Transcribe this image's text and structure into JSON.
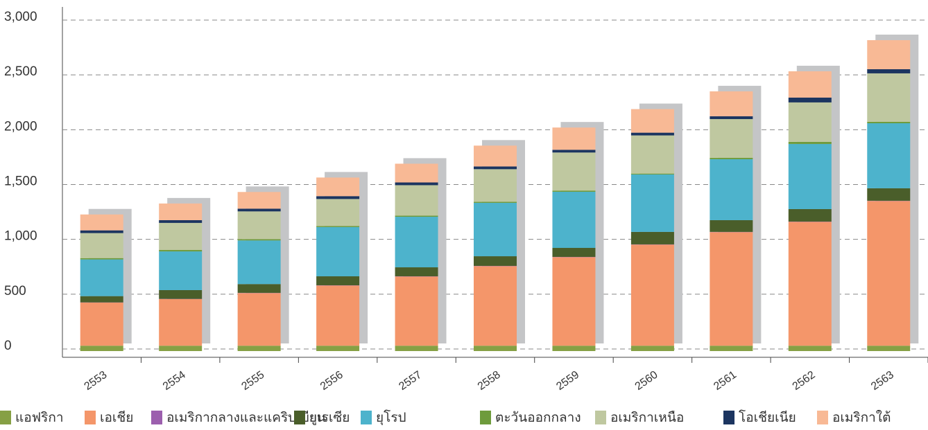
{
  "chart_data": {
    "type": "stacked_bar",
    "categories": [
      "2553",
      "2554",
      "2555",
      "2556",
      "2557",
      "2558",
      "2559",
      "2560",
      "2561",
      "2562",
      "2563"
    ],
    "series": [
      {
        "name": "แอฟริกา",
        "color": "#86a044",
        "values": [
          30,
          30,
          30,
          30,
          30,
          30,
          30,
          30,
          30,
          30,
          30
        ]
      },
      {
        "name": "เอเชีย",
        "color": "#f4966a",
        "values": [
          393,
          425,
          480,
          549,
          631,
          726,
          808,
          922,
          1036,
          1130,
          1320
        ]
      },
      {
        "name": "อเมริกากลางและแคริบเบียน",
        "color": "#9c5fae",
        "values": [
          2,
          2,
          2,
          2,
          2,
          2,
          2,
          2,
          2,
          2,
          2
        ]
      },
      {
        "name": "ยูเรเซีย",
        "color": "#4a5e2a",
        "values": [
          57,
          80,
          80,
          82,
          82,
          88,
          82,
          114,
          107,
          114,
          114
        ]
      },
      {
        "name": "ยุโรป",
        "color": "#4db3cc",
        "values": [
          335,
          353,
          398,
          449,
          461,
          487,
          512,
          524,
          556,
          594,
          593
        ]
      },
      {
        "name": "ตะวันออกกลาง",
        "color": "#6e9b3c",
        "values": [
          12,
          13,
          12,
          10,
          10,
          10,
          11,
          8,
          13,
          19,
          13
        ]
      },
      {
        "name": "อเมริกาเหนือ",
        "color": "#bfc8a0",
        "values": [
          228,
          247,
          253,
          246,
          278,
          297,
          347,
          348,
          353,
          360,
          442
        ]
      },
      {
        "name": "โอเชียเนีย",
        "color": "#1c3560",
        "values": [
          25,
          25,
          25,
          26,
          25,
          25,
          25,
          25,
          26,
          44,
          38
        ]
      },
      {
        "name": "อเมริกาใต้",
        "color": "#f8b995",
        "values": [
          145,
          152,
          152,
          170,
          171,
          190,
          203,
          215,
          227,
          240,
          265
        ]
      }
    ],
    "ylim": [
      0,
      3000
    ],
    "yticks": [
      0,
      {
        "value": 500,
        "label": "500"
      },
      {
        "value": 1000,
        "label": "1,000"
      },
      {
        "value": 1500,
        "label": "1,500"
      },
      {
        "value": 2000,
        "label": "2,000"
      },
      {
        "value": 2500,
        "label": "2,500"
      },
      {
        "value": 3000,
        "label": "3,000"
      }
    ],
    "grid": true
  }
}
